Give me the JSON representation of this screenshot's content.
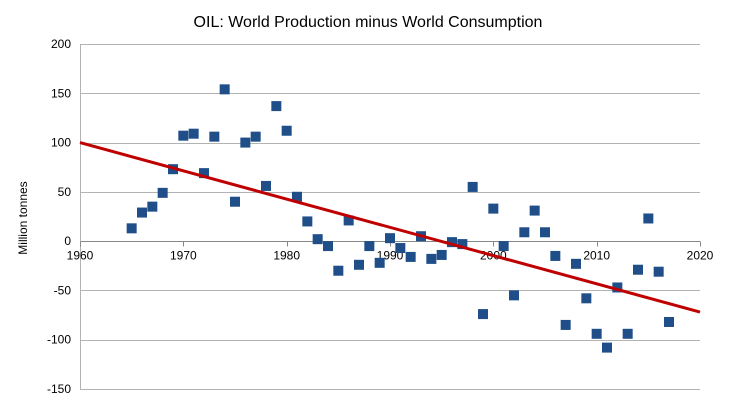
{
  "chart_data": {
    "type": "scatter",
    "title": "OIL: World Production minus World Consumption",
    "xlabel": "",
    "ylabel": "Million tonnes",
    "xlim": [
      1960,
      2020
    ],
    "ylim": [
      -150,
      200
    ],
    "xticks": [
      1960,
      1970,
      1980,
      1990,
      2000,
      2010,
      2020
    ],
    "yticks": [
      -150,
      -100,
      -50,
      0,
      50,
      100,
      150,
      200
    ],
    "grid": "horizontal",
    "legend": "none",
    "marker_color": "#1F4E89",
    "trend_color": "#C00000",
    "axis_color": "#B3B3B3",
    "series": [
      {
        "name": "Production minus Consumption",
        "x": [
          1965,
          1966,
          1967,
          1968,
          1969,
          1970,
          1971,
          1972,
          1973,
          1974,
          1975,
          1976,
          1977,
          1978,
          1979,
          1980,
          1981,
          1982,
          1983,
          1984,
          1985,
          1986,
          1987,
          1988,
          1989,
          1990,
          1991,
          1992,
          1993,
          1994,
          1995,
          1996,
          1997,
          1998,
          1999,
          2000,
          2001,
          2002,
          2003,
          2004,
          2005,
          2006,
          2007,
          2008,
          2009,
          2010,
          2011,
          2012,
          2013,
          2014,
          2015,
          2016,
          2017
        ],
        "y": [
          13,
          29,
          35,
          49,
          73,
          107,
          109,
          69,
          106,
          154,
          40,
          100,
          106,
          56,
          137,
          112,
          45,
          20,
          2,
          -5,
          -30,
          21,
          -24,
          -5,
          -22,
          3,
          -7,
          -16,
          5,
          -18,
          -14,
          -1,
          -3,
          55,
          -74,
          33,
          -5,
          -55,
          9,
          31,
          9,
          -15,
          -85,
          -23,
          -58,
          -94,
          -108,
          -47,
          -94,
          -29,
          23,
          -31,
          -82
        ]
      }
    ],
    "trendline": {
      "x": [
        1960,
        2020
      ],
      "y": [
        100,
        -72
      ]
    }
  }
}
